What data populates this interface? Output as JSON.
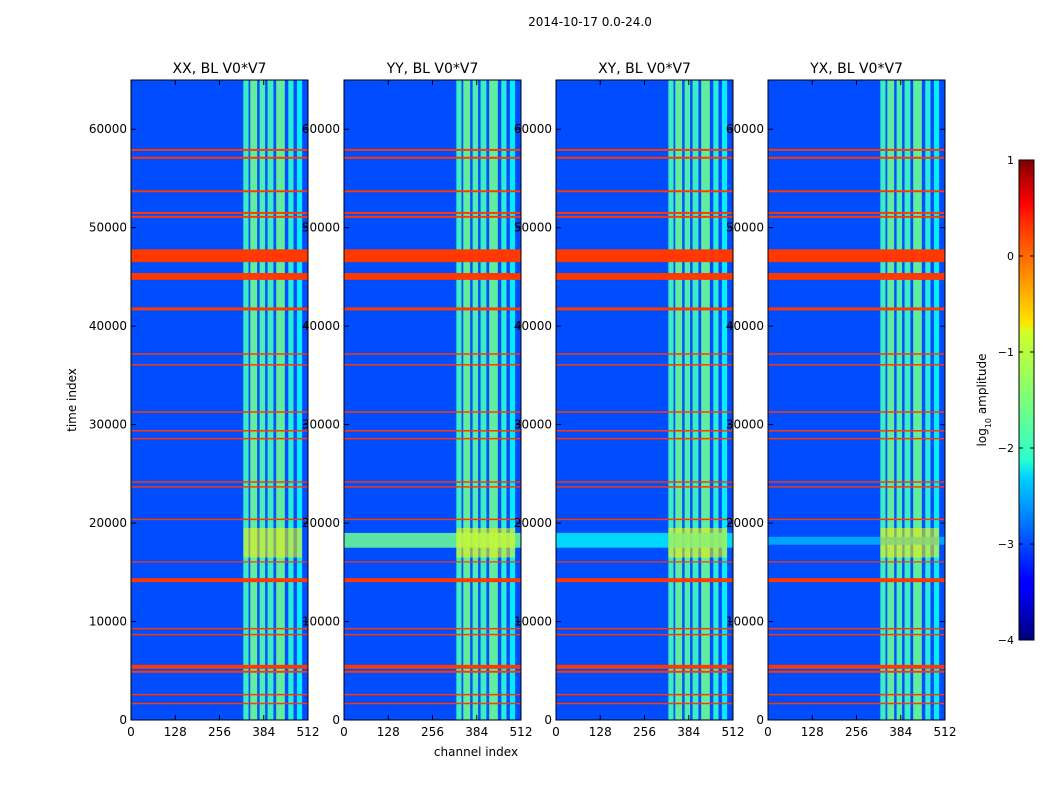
{
  "figure": {
    "suptitle": "2014-10-17 0.0-24.0",
    "xlabel": "channel index",
    "ylabel": "time index"
  },
  "colorbar": {
    "label_main": "log",
    "label_sub": "10",
    "label_tail": " amplitude",
    "range": [
      -4,
      1
    ],
    "ticks": [
      "1",
      "0",
      "−1",
      "−2",
      "−3",
      "−4"
    ],
    "tick_values": [
      1,
      0,
      -1,
      -2,
      -3,
      -4
    ],
    "colormap": "jet"
  },
  "chart_data": {
    "type": "heatmap",
    "x": {
      "label": "channel index",
      "range": [
        0,
        512
      ],
      "ticks": [
        0,
        128,
        256,
        384,
        512
      ],
      "tick_labels": [
        "0",
        "128",
        "256",
        "384",
        "512"
      ]
    },
    "y": {
      "label": "time index",
      "range": [
        0,
        65000
      ],
      "ticks": [
        0,
        10000,
        20000,
        30000,
        40000,
        50000,
        60000
      ],
      "tick_labels": [
        "0",
        "10000",
        "20000",
        "30000",
        "40000",
        "50000",
        "60000"
      ]
    },
    "value_label": "log10 amplitude",
    "value_range": [
      -4,
      1
    ],
    "background_value": -3,
    "panels": [
      {
        "title": "XX, BL V0*V7",
        "horizontal_bright_band": null
      },
      {
        "title": "YY, BL V0*V7",
        "horizontal_bright_band": {
          "t_start": 17500,
          "t_end": 19000,
          "value": -1.6
        }
      },
      {
        "title": "XY, BL V0*V7",
        "horizontal_bright_band": {
          "t_start": 17500,
          "t_end": 19000,
          "value": -2.2
        }
      },
      {
        "title": "YX, BL V0*V7",
        "horizontal_bright_band": {
          "t_start": 17800,
          "t_end": 18600,
          "value": -2.5
        }
      }
    ],
    "channel_bands": [
      {
        "start": 325,
        "end": 340,
        "value": -1.8
      },
      {
        "start": 345,
        "end": 365,
        "value": -1.6
      },
      {
        "start": 372,
        "end": 388,
        "value": -1.7
      },
      {
        "start": 395,
        "end": 412,
        "value": -1.8
      },
      {
        "start": 420,
        "end": 445,
        "value": -1.6
      },
      {
        "start": 455,
        "end": 470,
        "value": -1.9
      },
      {
        "start": 480,
        "end": 495,
        "value": -2.1
      }
    ],
    "flagged_rows": [
      {
        "t_start": 46500,
        "t_end": 47800,
        "value": 0.1
      },
      {
        "t_start": 44700,
        "t_end": 45400,
        "value": 0.1
      },
      {
        "t_start": 14000,
        "t_end": 14400,
        "value": 0.1
      },
      {
        "t_start": 5200,
        "t_end": 5600,
        "value": 0.1
      },
      {
        "t_start": 4800,
        "t_end": 5000,
        "value": 0.1
      },
      {
        "t_start": 57800,
        "t_end": 58000,
        "value": 0.1
      },
      {
        "t_start": 57000,
        "t_end": 57200,
        "value": 0.1
      },
      {
        "t_start": 53600,
        "t_end": 53800,
        "value": 0.1
      },
      {
        "t_start": 51400,
        "t_end": 51600,
        "value": 0.1
      },
      {
        "t_start": 51000,
        "t_end": 51200,
        "value": 0.1
      },
      {
        "t_start": 41600,
        "t_end": 41900,
        "value": 0.1
      },
      {
        "t_start": 37100,
        "t_end": 37250,
        "value": 0.1
      },
      {
        "t_start": 36000,
        "t_end": 36150,
        "value": 0.1
      },
      {
        "t_start": 31200,
        "t_end": 31350,
        "value": 0.1
      },
      {
        "t_start": 29300,
        "t_end": 29450,
        "value": 0.1
      },
      {
        "t_start": 28500,
        "t_end": 28650,
        "value": 0.1
      },
      {
        "t_start": 24100,
        "t_end": 24250,
        "value": 0.1
      },
      {
        "t_start": 23600,
        "t_end": 23750,
        "value": 0.1
      },
      {
        "t_start": 20300,
        "t_end": 20450,
        "value": 0.1
      },
      {
        "t_start": 16000,
        "t_end": 16120,
        "value": 0.1
      },
      {
        "t_start": 9200,
        "t_end": 9350,
        "value": 0.1
      },
      {
        "t_start": 8600,
        "t_end": 8750,
        "value": 0.1
      },
      {
        "t_start": 2500,
        "t_end": 2650,
        "value": 0.1
      },
      {
        "t_start": 1600,
        "t_end": 1750,
        "value": 0.1
      }
    ],
    "rfi_region": {
      "t_start": 16500,
      "t_end": 19500,
      "ch_start": 325,
      "ch_end": 495,
      "value": -0.8
    }
  }
}
